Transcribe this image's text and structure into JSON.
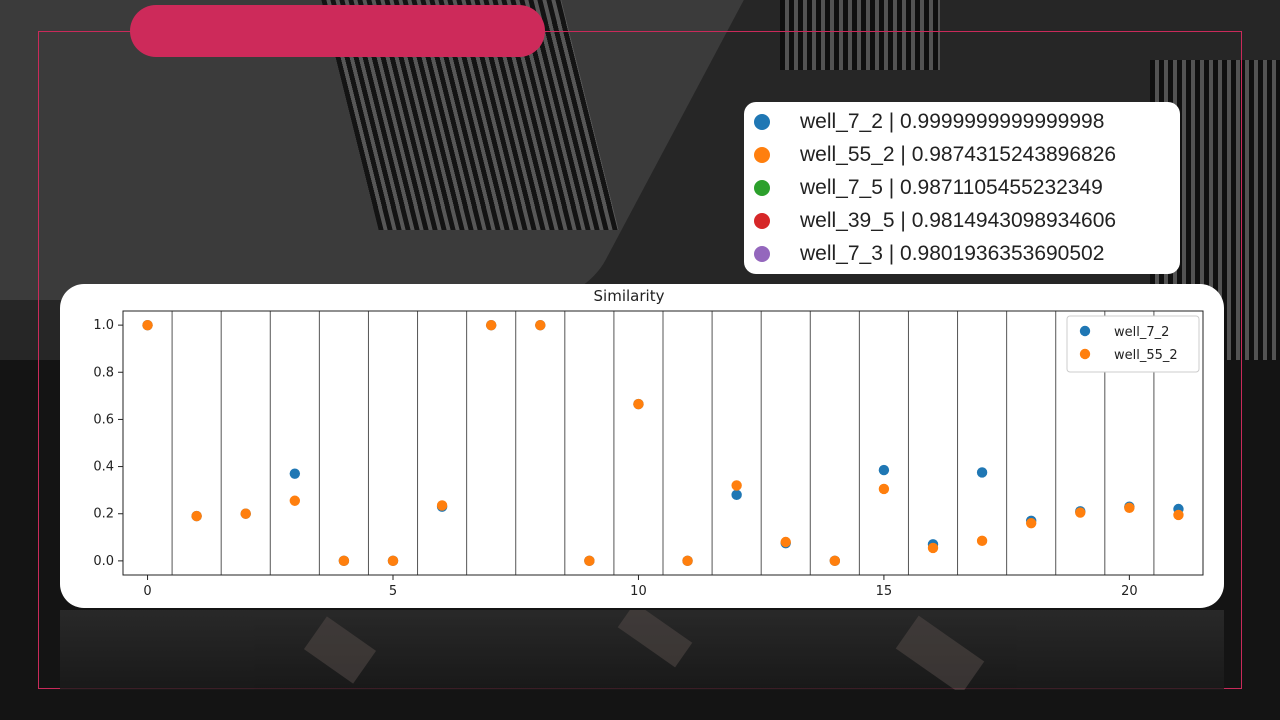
{
  "legend_card": {
    "items": [
      {
        "label": "well_7_2 | 0.9999999999999998",
        "color": "#1f77b4"
      },
      {
        "label": "well_55_2 | 0.9874315243896826",
        "color": "#ff7f0e"
      },
      {
        "label": "well_7_5 | 0.9871105455232349",
        "color": "#2ca02c"
      },
      {
        "label": "well_39_5 | 0.9814943098934606",
        "color": "#d62728"
      },
      {
        "label": "well_7_3 | 0.9801936353690502",
        "color": "#9467bd"
      }
    ]
  },
  "chart_data": {
    "type": "scatter",
    "title": "Similarity",
    "xlabel": "",
    "ylabel": "",
    "xlim": [
      -0.5,
      21.5
    ],
    "ylim": [
      -0.06,
      1.06
    ],
    "x_ticks": [
      "0",
      "5",
      "10",
      "15",
      "20"
    ],
    "y_ticks": [
      "0.0",
      "0.2",
      "0.4",
      "0.6",
      "0.8",
      "1.0"
    ],
    "vertical_separators": true,
    "legend_position": "top-right",
    "x": [
      0,
      1,
      2,
      3,
      4,
      5,
      6,
      7,
      8,
      9,
      10,
      11,
      12,
      13,
      14,
      15,
      16,
      17,
      18,
      19,
      20,
      21
    ],
    "series": [
      {
        "name": "well_7_2",
        "color": "#1f77b4",
        "values": [
          1.0,
          0.19,
          0.2,
          0.37,
          0.0,
          0.0,
          0.23,
          1.0,
          1.0,
          0.0,
          0.665,
          0.0,
          0.28,
          0.075,
          0.0,
          0.385,
          0.07,
          0.375,
          0.17,
          0.21,
          0.23,
          0.22
        ]
      },
      {
        "name": "well_55_2",
        "color": "#ff7f0e",
        "values": [
          1.0,
          0.19,
          0.2,
          0.255,
          0.0,
          0.0,
          0.235,
          1.0,
          1.0,
          0.0,
          0.665,
          0.0,
          0.32,
          0.08,
          0.0,
          0.305,
          0.055,
          0.085,
          0.16,
          0.205,
          0.225,
          0.195
        ]
      }
    ]
  }
}
